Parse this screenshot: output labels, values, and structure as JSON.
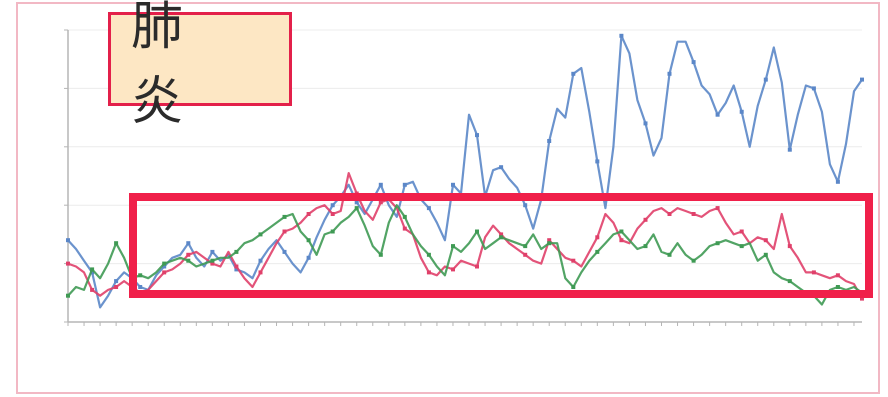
{
  "title": "肺 炎",
  "colors": {
    "blue": "#5b87c8",
    "red": "#e0406a",
    "green": "#3f9a54",
    "highlight": "#f0204a",
    "axis": "#b5b5b5"
  },
  "chart_data": {
    "type": "line",
    "title": "肺 炎",
    "ylim": [
      0,
      5
    ],
    "yticks": [
      0,
      1,
      2,
      3,
      4,
      5
    ],
    "x": [
      1,
      2,
      3,
      4,
      5,
      6,
      7,
      8,
      9,
      10,
      11,
      12,
      13,
      14,
      15,
      16,
      17,
      18,
      19,
      20,
      21,
      22,
      23,
      24,
      25,
      26,
      27,
      28,
      29,
      30,
      31,
      32,
      33,
      34,
      35,
      36,
      37,
      38,
      39,
      40,
      41,
      42,
      43,
      44,
      45,
      46,
      47,
      48,
      49,
      50,
      51,
      52,
      53,
      54,
      55,
      56,
      57,
      58,
      59,
      60,
      61,
      62,
      63,
      64,
      65,
      66,
      67,
      68,
      69,
      70,
      71,
      72,
      73,
      74,
      75,
      76,
      77,
      78,
      79,
      80,
      81,
      82,
      83,
      84,
      85,
      86,
      87,
      88,
      89,
      90,
      91,
      92,
      93,
      94,
      95,
      96,
      97,
      98,
      99,
      100
    ],
    "series": [
      {
        "color": "#5b87c8",
        "values": [
          1.4,
          1.25,
          1.05,
          0.85,
          0.25,
          0.45,
          0.7,
          0.85,
          0.75,
          0.6,
          0.55,
          0.8,
          0.95,
          1.1,
          1.15,
          1.35,
          1.1,
          0.95,
          1.2,
          1.05,
          1.15,
          0.9,
          0.85,
          0.75,
          1.05,
          1.25,
          1.4,
          1.2,
          1.0,
          0.85,
          1.1,
          1.45,
          1.75,
          2.0,
          2.15,
          2.35,
          2.05,
          1.85,
          2.1,
          2.35,
          2.0,
          1.8,
          2.35,
          2.4,
          2.1,
          1.95,
          1.7,
          1.4,
          2.35,
          2.2,
          3.55,
          3.2,
          2.15,
          2.6,
          2.65,
          2.45,
          2.3,
          2.0,
          1.6,
          2.1,
          3.1,
          3.65,
          3.5,
          4.25,
          4.35,
          3.6,
          2.75,
          1.95,
          3.0,
          4.9,
          4.6,
          3.8,
          3.4,
          2.85,
          3.15,
          4.25,
          4.8,
          4.8,
          4.45,
          4.05,
          3.9,
          3.55,
          3.75,
          4.05,
          3.6,
          3.0,
          3.7,
          4.15,
          4.7,
          4.1,
          2.95,
          3.55,
          4.05,
          4.0,
          3.6,
          2.7,
          2.4,
          3.05,
          3.95,
          4.15
        ]
      },
      {
        "color": "#e0406a",
        "values": [
          1.0,
          0.95,
          0.85,
          0.55,
          0.45,
          0.55,
          0.6,
          0.7,
          0.6,
          0.5,
          0.55,
          0.7,
          0.85,
          0.9,
          1.0,
          1.15,
          1.2,
          1.1,
          1.0,
          0.95,
          1.2,
          0.95,
          0.75,
          0.6,
          0.85,
          1.1,
          1.35,
          1.55,
          1.6,
          1.7,
          1.85,
          1.95,
          2.0,
          1.85,
          1.9,
          2.55,
          2.2,
          1.9,
          1.75,
          2.05,
          2.1,
          1.95,
          1.6,
          1.5,
          1.1,
          0.85,
          0.8,
          0.95,
          0.9,
          1.05,
          1.0,
          0.95,
          1.45,
          1.65,
          1.5,
          1.35,
          1.25,
          1.15,
          1.05,
          1.0,
          1.4,
          1.25,
          1.1,
          1.05,
          0.95,
          1.2,
          1.45,
          1.85,
          1.7,
          1.4,
          1.35,
          1.6,
          1.75,
          1.9,
          1.95,
          1.85,
          1.95,
          1.9,
          1.85,
          1.8,
          1.9,
          1.95,
          1.7,
          1.5,
          1.55,
          1.35,
          1.45,
          1.4,
          1.25,
          1.85,
          1.3,
          1.1,
          0.85,
          0.85,
          0.8,
          0.75,
          0.8,
          0.7,
          0.65,
          0.4
        ]
      },
      {
        "color": "#3f9a54",
        "values": [
          0.45,
          0.6,
          0.55,
          0.9,
          0.75,
          1.0,
          1.35,
          1.1,
          0.75,
          0.8,
          0.75,
          0.85,
          1.0,
          1.05,
          1.1,
          1.05,
          0.95,
          1.0,
          1.05,
          1.1,
          1.1,
          1.2,
          1.35,
          1.4,
          1.5,
          1.6,
          1.7,
          1.8,
          1.85,
          1.55,
          1.4,
          1.15,
          1.5,
          1.55,
          1.7,
          1.8,
          1.95,
          1.65,
          1.3,
          1.15,
          1.7,
          2.0,
          1.8,
          1.5,
          1.3,
          1.15,
          0.95,
          0.8,
          1.3,
          1.2,
          1.35,
          1.55,
          1.25,
          1.35,
          1.45,
          1.4,
          1.35,
          1.3,
          1.5,
          1.25,
          1.35,
          1.35,
          0.75,
          0.6,
          0.85,
          1.05,
          1.2,
          1.35,
          1.5,
          1.55,
          1.4,
          1.25,
          1.3,
          1.5,
          1.2,
          1.15,
          1.35,
          1.15,
          1.05,
          1.15,
          1.3,
          1.35,
          1.4,
          1.35,
          1.3,
          1.35,
          1.05,
          1.15,
          0.85,
          0.75,
          0.7,
          0.6,
          0.5,
          0.45,
          0.3,
          0.55,
          0.6,
          0.55,
          0.6,
          0.5
        ]
      }
    ]
  }
}
